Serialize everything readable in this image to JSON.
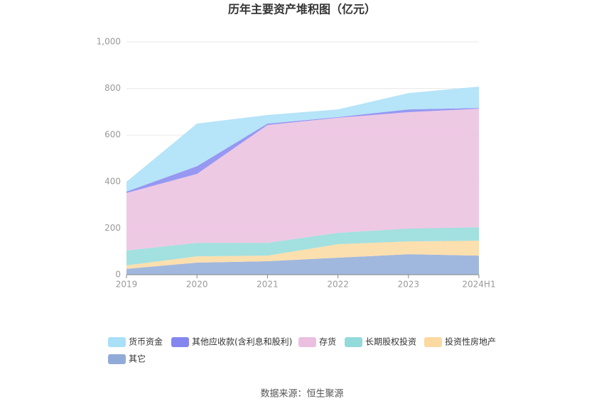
{
  "chart_data": {
    "type": "stacked_area",
    "title": "历年主要资产堆积图（亿元）",
    "categories": [
      "2019",
      "2020",
      "2021",
      "2022",
      "2023",
      "2024H1"
    ],
    "series": [
      {
        "name": "货币资金",
        "color": "#a9dff7",
        "values": [
          42,
          183,
          37,
          33,
          70,
          92
        ]
      },
      {
        "name": "其他应收款(含利息和股利)",
        "color": "#8486f0",
        "values": [
          6,
          33,
          6,
          3,
          12,
          3
        ]
      },
      {
        "name": "存货",
        "color": "#ebbfdf",
        "values": [
          247,
          296,
          506,
          494,
          500,
          509
        ]
      },
      {
        "name": "长期股权投资",
        "color": "#93dada",
        "values": [
          64,
          58,
          55,
          49,
          55,
          58
        ]
      },
      {
        "name": "投资性房地产",
        "color": "#fcd9a0",
        "values": [
          15,
          27,
          24,
          58,
          55,
          64
        ]
      },
      {
        "name": "其它",
        "color": "#91abd8",
        "values": [
          25,
          52,
          58,
          73,
          88,
          82
        ]
      }
    ],
    "ylim": [
      0,
      1000
    ],
    "yticks": [
      0,
      200,
      400,
      600,
      800,
      {
        "value": 1000,
        "label": "1,000"
      }
    ],
    "grid": true,
    "source": "数据来源：恒生聚源"
  }
}
